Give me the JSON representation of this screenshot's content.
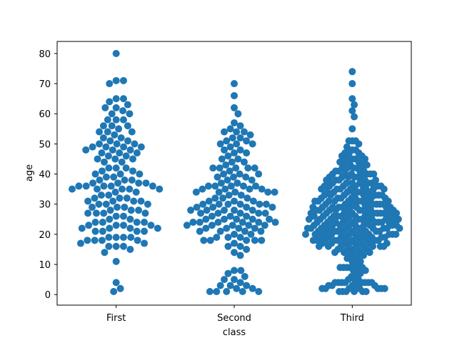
{
  "chart_data": {
    "type": "scatter",
    "subtype": "swarm",
    "title": "",
    "xlabel": "class",
    "ylabel": "age",
    "categories": [
      "First",
      "Second",
      "Third"
    ],
    "ylim": [
      -3.5,
      84
    ],
    "yticks": [
      0,
      10,
      20,
      30,
      40,
      50,
      60,
      70,
      80
    ],
    "marker_color": "#1f77b4",
    "series": [
      {
        "name": "First",
        "values": [
          80,
          71,
          71,
          70,
          65,
          65,
          64,
          63,
          62,
          62,
          61,
          60,
          60,
          58,
          58,
          58,
          56,
          56,
          56,
          55,
          54,
          54,
          54,
          53,
          52,
          52,
          51,
          51,
          50,
          50,
          50,
          49,
          49,
          49,
          49,
          48,
          48,
          48,
          47,
          47,
          47,
          46,
          46,
          45,
          45,
          45,
          44,
          44,
          42,
          42,
          42,
          41,
          41,
          40,
          40,
          40,
          39,
          39,
          38,
          38,
          38,
          37,
          37,
          37,
          37,
          36,
          36,
          36,
          36,
          36,
          35,
          35,
          35,
          35,
          35,
          34,
          34,
          33,
          33,
          32,
          32,
          32,
          31,
          31,
          31,
          31,
          30,
          30,
          30,
          29,
          29,
          29,
          28,
          28,
          28,
          27,
          27,
          27,
          27,
          26,
          26,
          25,
          25,
          24,
          24,
          24,
          24,
          23,
          23,
          23,
          23,
          22,
          22,
          22,
          22,
          21,
          21,
          21,
          21,
          19,
          19,
          19,
          19,
          18,
          18,
          18,
          18,
          17,
          17,
          16,
          16,
          16,
          15,
          14,
          11,
          4,
          2,
          1
        ]
      },
      {
        "name": "Second",
        "values": [
          70,
          66,
          62,
          60,
          57,
          56,
          55,
          54,
          54,
          54,
          53,
          52,
          52,
          51,
          51,
          50,
          50,
          50,
          49,
          48,
          48,
          47,
          47,
          46,
          45,
          45,
          44,
          44,
          43,
          42,
          42,
          42,
          42,
          42,
          41,
          40,
          40,
          40,
          39,
          39,
          39,
          38,
          38,
          37,
          37,
          36,
          36,
          36,
          36,
          36,
          35,
          35,
          35,
          35,
          34,
          34,
          34,
          34,
          34,
          33,
          33,
          32,
          32,
          32,
          31,
          31,
          31,
          30,
          30,
          30,
          30,
          30,
          30,
          29,
          29,
          29,
          29,
          28,
          28,
          28,
          28,
          28,
          27,
          27,
          27,
          27,
          27,
          26,
          26,
          26,
          25,
          25,
          25,
          25,
          25,
          24,
          24,
          24,
          24,
          24,
          24,
          23,
          23,
          23,
          23,
          23,
          22,
          22,
          22,
          22,
          21,
          21,
          21,
          21,
          20,
          20,
          19,
          19,
          19,
          18,
          18,
          18,
          18,
          18,
          17,
          16,
          16,
          15,
          14,
          13,
          8,
          8,
          7,
          6,
          5,
          5,
          4,
          3,
          3,
          3,
          2,
          2,
          1,
          1,
          1,
          1,
          1
        ]
      },
      {
        "name": "Third",
        "values": [
          74,
          70,
          65,
          63,
          61,
          59,
          55,
          51,
          51,
          51,
          50,
          49,
          48,
          48,
          47,
          47,
          47,
          46,
          46,
          45,
          45,
          45,
          45,
          44,
          44,
          44,
          43,
          43,
          43,
          42,
          42,
          42,
          42,
          41,
          41,
          41,
          41,
          40,
          40,
          40,
          40,
          40,
          40,
          39,
          39,
          39,
          39,
          39,
          39,
          38,
          38,
          38,
          38,
          38,
          37,
          37,
          37,
          37,
          37,
          37,
          36,
          36,
          36,
          36,
          36,
          36,
          36,
          35,
          35,
          35,
          35,
          35,
          35,
          35,
          34,
          34,
          34,
          34,
          34,
          34,
          34,
          33,
          33,
          33,
          33,
          33,
          33,
          33,
          32,
          32,
          32,
          32,
          32,
          32,
          32,
          32,
          31,
          31,
          31,
          31,
          31,
          31,
          31,
          31,
          30,
          30,
          30,
          30,
          30,
          30,
          30,
          30,
          30,
          29,
          29,
          29,
          29,
          29,
          29,
          29,
          29,
          29,
          28,
          28,
          28,
          28,
          28,
          28,
          28,
          28,
          28,
          28,
          27,
          27,
          27,
          27,
          27,
          27,
          27,
          27,
          27,
          27,
          26,
          26,
          26,
          26,
          26,
          26,
          26,
          26,
          26,
          26,
          25,
          25,
          25,
          25,
          25,
          25,
          25,
          25,
          25,
          25,
          24,
          24,
          24,
          24,
          24,
          24,
          24,
          24,
          24,
          24,
          23,
          23,
          23,
          23,
          23,
          23,
          23,
          23,
          23,
          23,
          22,
          22,
          22,
          22,
          22,
          22,
          22,
          22,
          22,
          22,
          21,
          21,
          21,
          21,
          21,
          21,
          21,
          21,
          21,
          21,
          20,
          20,
          20,
          20,
          20,
          20,
          20,
          20,
          20,
          20,
          19,
          19,
          19,
          19,
          19,
          19,
          19,
          19,
          19,
          18,
          18,
          18,
          18,
          18,
          18,
          18,
          18,
          18,
          17,
          17,
          17,
          17,
          17,
          17,
          17,
          17,
          16,
          16,
          16,
          16,
          16,
          16,
          16,
          15,
          15,
          15,
          15,
          15,
          14,
          14,
          14,
          14,
          13,
          13,
          13,
          12,
          12,
          11,
          11,
          10,
          9,
          9,
          9,
          9,
          9,
          9,
          8,
          8,
          7,
          7,
          6,
          5,
          5,
          5,
          4,
          4,
          4,
          4,
          4,
          4,
          4,
          4,
          3,
          3,
          3,
          3,
          3,
          2,
          2,
          2,
          2,
          2,
          2,
          2,
          1,
          1,
          1,
          1,
          1,
          1
        ]
      }
    ]
  }
}
